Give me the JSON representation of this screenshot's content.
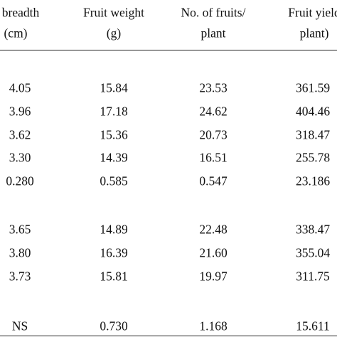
{
  "table": {
    "header": [
      [
        "it breadth",
        "(cm)"
      ],
      [
        "Fruit weight",
        "(g)"
      ],
      [
        "No. of fruits/",
        "plant"
      ],
      [
        "Fruit yield",
        "plant)"
      ]
    ],
    "rows": [
      [
        "4.05",
        "15.84",
        "23.53",
        "361.59"
      ],
      [
        "3.96",
        "17.18",
        "24.62",
        "404.46"
      ],
      [
        "3.62",
        "15.36",
        "20.73",
        "318.47"
      ],
      [
        "3.30",
        "14.39",
        "16.51",
        "255.78"
      ],
      [
        "0.280",
        "0.585",
        "0.547",
        "23.186"
      ],
      [
        "3.65",
        "14.89",
        "22.48",
        "338.47"
      ],
      [
        "3.80",
        "16.39",
        "21.60",
        "355.04"
      ],
      [
        "3.73",
        "15.81",
        "19.97",
        "311.75"
      ],
      [
        "NS",
        "0.730",
        "1.168",
        "15.611"
      ]
    ]
  }
}
